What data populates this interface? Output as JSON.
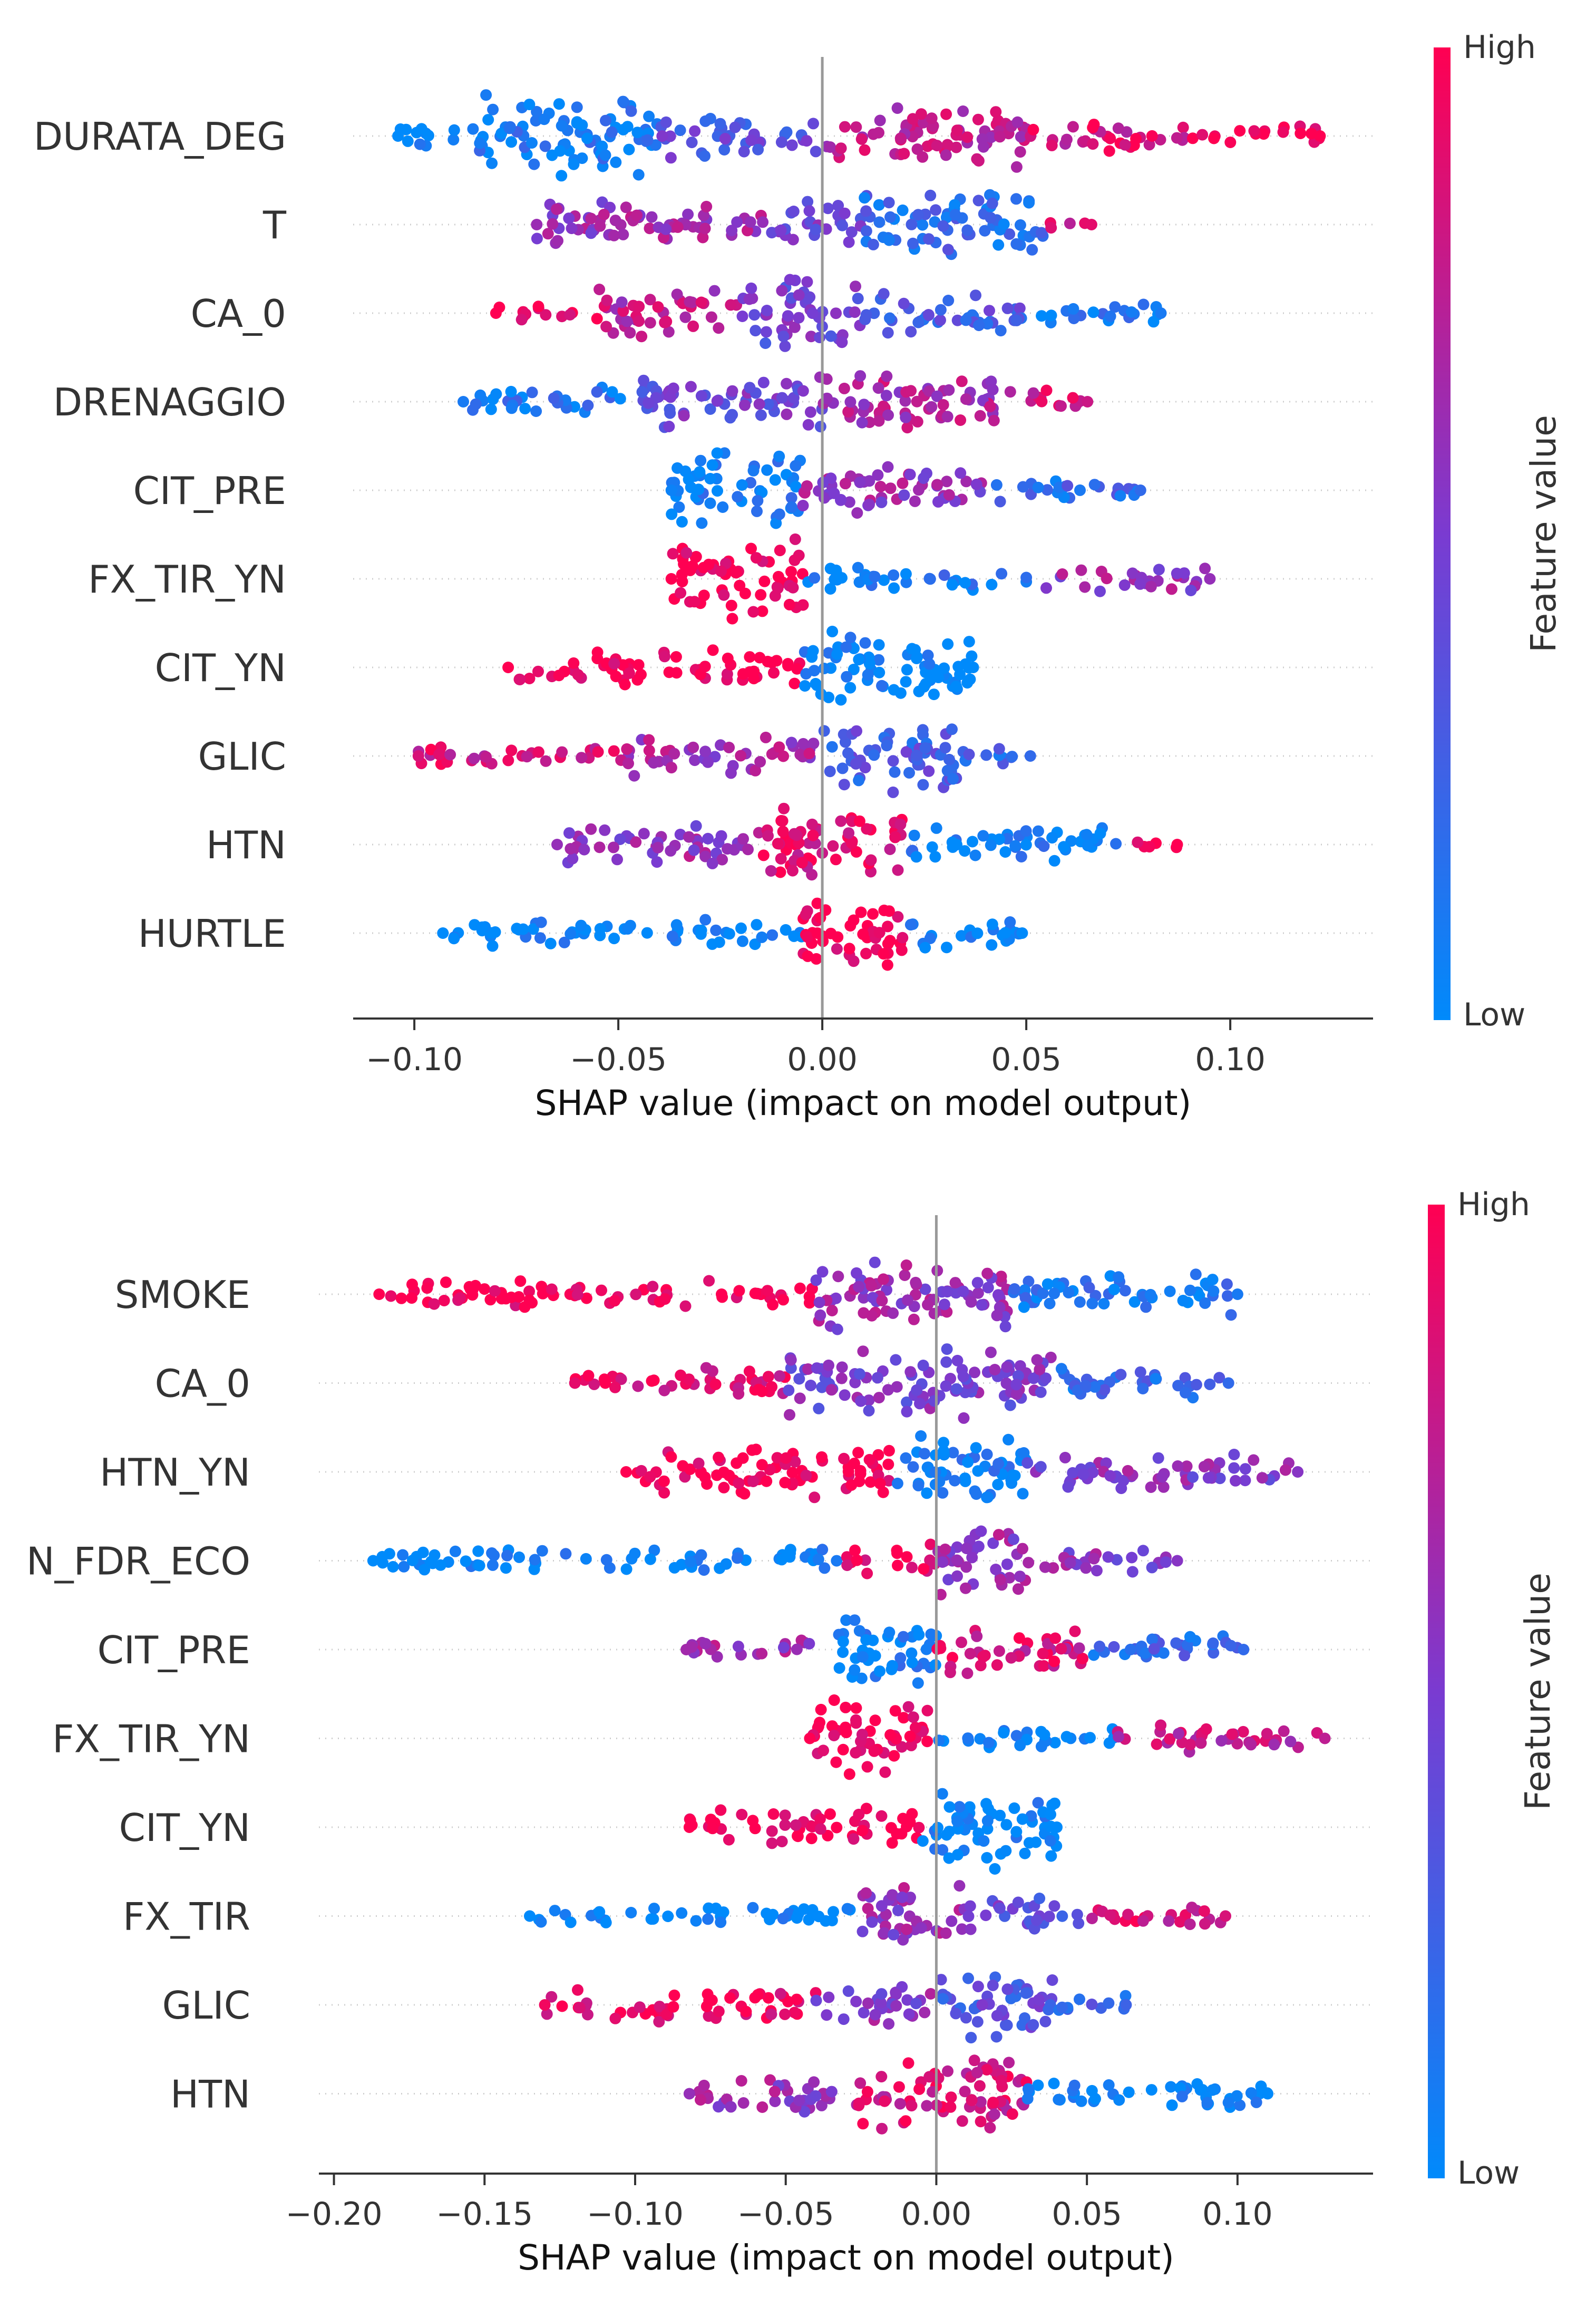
{
  "chart_data": [
    {
      "type": "scatter",
      "subtype": "shap-beeswarm",
      "xlabel": "SHAP value (impact on model output)",
      "xlim": [
        -0.115,
        0.135
      ],
      "xticks": [
        -0.1,
        -0.05,
        0.0,
        0.05,
        0.1
      ],
      "xtick_labels": [
        "−0.10",
        "−0.05",
        "0.00",
        "0.05",
        "0.10"
      ],
      "colorbar": {
        "title": "Feature value",
        "high": "High",
        "low": "Low"
      },
      "features": [
        {
          "name": "DURATA_DEG",
          "min": -0.104,
          "max": 0.122,
          "segments": [
            {
              "from": -0.104,
              "to": -0.085,
              "d": 0.5,
              "c": 0.0
            },
            {
              "from": -0.085,
              "to": -0.04,
              "d": 2.6,
              "c": 0.08
            },
            {
              "from": -0.04,
              "to": 0.0,
              "d": 1.2,
              "c": 0.35
            },
            {
              "from": 0.0,
              "to": 0.05,
              "d": 2.0,
              "c": 0.75
            },
            {
              "from": 0.05,
              "to": 0.09,
              "d": 0.8,
              "c": 0.85
            },
            {
              "from": 0.09,
              "to": 0.122,
              "d": 0.35,
              "c": 1.0
            }
          ]
        },
        {
          "name": "T",
          "min": -0.07,
          "max": 0.066,
          "segments": [
            {
              "from": -0.07,
              "to": -0.015,
              "d": 1.5,
              "c": 0.62
            },
            {
              "from": -0.015,
              "to": 0.01,
              "d": 1.3,
              "c": 0.45
            },
            {
              "from": 0.01,
              "to": 0.055,
              "d": 2.2,
              "c": 0.2
            },
            {
              "from": 0.055,
              "to": 0.066,
              "d": 0.1,
              "c": 0.9
            }
          ]
        },
        {
          "name": "CA_0",
          "min": -0.08,
          "max": 0.083,
          "segments": [
            {
              "from": -0.08,
              "to": -0.055,
              "d": 0.2,
              "c": 1.0
            },
            {
              "from": -0.055,
              "to": -0.02,
              "d": 1.5,
              "c": 0.75
            },
            {
              "from": -0.02,
              "to": 0.01,
              "d": 2.4,
              "c": 0.45
            },
            {
              "from": 0.01,
              "to": 0.05,
              "d": 1.3,
              "c": 0.3
            },
            {
              "from": 0.05,
              "to": 0.083,
              "d": 0.45,
              "c": 0.1
            }
          ]
        },
        {
          "name": "DRENAGGIO",
          "min": -0.088,
          "max": 0.065,
          "segments": [
            {
              "from": -0.088,
              "to": -0.045,
              "d": 0.7,
              "c": 0.1
            },
            {
              "from": -0.045,
              "to": 0.0,
              "d": 1.8,
              "c": 0.45
            },
            {
              "from": 0.0,
              "to": 0.045,
              "d": 2.0,
              "c": 0.7
            },
            {
              "from": 0.045,
              "to": 0.065,
              "d": 0.5,
              "c": 0.8
            }
          ]
        },
        {
          "name": "CIT_PRE",
          "min": -0.037,
          "max": 0.078,
          "segments": [
            {
              "from": -0.037,
              "to": -0.005,
              "d": 2.5,
              "c": 0.05
            },
            {
              "from": -0.005,
              "to": 0.04,
              "d": 1.6,
              "c": 0.6
            },
            {
              "from": 0.04,
              "to": 0.078,
              "d": 0.5,
              "c": 0.2
            }
          ]
        },
        {
          "name": "FX_TIR_YN",
          "min": -0.037,
          "max": 0.095,
          "segments": [
            {
              "from": -0.037,
              "to": -0.004,
              "d": 2.7,
              "c": 1.0
            },
            {
              "from": -0.004,
              "to": 0.05,
              "d": 0.6,
              "c": 0.1
            },
            {
              "from": 0.05,
              "to": 0.095,
              "d": 0.5,
              "c": 0.6
            }
          ]
        },
        {
          "name": "CIT_YN",
          "min": -0.077,
          "max": 0.037,
          "segments": [
            {
              "from": -0.077,
              "to": -0.005,
              "d": 0.9,
              "c": 1.0
            },
            {
              "from": -0.005,
              "to": 0.037,
              "d": 2.6,
              "c": 0.0
            }
          ]
        },
        {
          "name": "GLIC",
          "min": -0.099,
          "max": 0.051,
          "segments": [
            {
              "from": -0.099,
              "to": -0.05,
              "d": 0.5,
              "c": 0.85
            },
            {
              "from": -0.05,
              "to": 0.0,
              "d": 1.1,
              "c": 0.65
            },
            {
              "from": 0.0,
              "to": 0.035,
              "d": 2.4,
              "c": 0.3
            },
            {
              "from": 0.035,
              "to": 0.051,
              "d": 0.5,
              "c": 0.2
            }
          ]
        },
        {
          "name": "HTN",
          "min": -0.065,
          "max": 0.087,
          "segments": [
            {
              "from": -0.065,
              "to": -0.015,
              "d": 1.2,
              "c": 0.6
            },
            {
              "from": -0.015,
              "to": 0.02,
              "d": 2.6,
              "c": 0.9
            },
            {
              "from": 0.02,
              "to": 0.075,
              "d": 0.9,
              "c": 0.05
            },
            {
              "from": 0.075,
              "to": 0.087,
              "d": 0.1,
              "c": 1.0
            }
          ]
        },
        {
          "name": "HURTLE",
          "min": -0.093,
          "max": 0.049,
          "segments": [
            {
              "from": -0.093,
              "to": -0.005,
              "d": 0.6,
              "c": 0.0
            },
            {
              "from": -0.005,
              "to": 0.02,
              "d": 2.8,
              "c": 1.0
            },
            {
              "from": 0.02,
              "to": 0.049,
              "d": 0.8,
              "c": 0.0
            }
          ]
        }
      ]
    },
    {
      "type": "scatter",
      "subtype": "shap-beeswarm",
      "xlabel": "SHAP value (impact on model output)",
      "xlim": [
        -0.205,
        0.145
      ],
      "xticks": [
        -0.2,
        -0.15,
        -0.1,
        -0.05,
        0.0,
        0.05,
        0.1
      ],
      "xtick_labels": [
        "−0.20",
        "−0.15",
        "−0.10",
        "−0.05",
        "0.00",
        "0.05",
        "0.10"
      ],
      "colorbar": {
        "title": "Feature value",
        "high": "High",
        "low": "Low"
      },
      "features": [
        {
          "name": "SMOKE",
          "min": -0.185,
          "max": 0.1,
          "segments": [
            {
              "from": -0.185,
              "to": -0.04,
              "d": 0.6,
              "c": 1.0
            },
            {
              "from": -0.04,
              "to": 0.025,
              "d": 2.4,
              "c": 0.6
            },
            {
              "from": 0.025,
              "to": 0.1,
              "d": 1.2,
              "c": 0.1
            }
          ]
        },
        {
          "name": "CA_0",
          "min": -0.12,
          "max": 0.097,
          "segments": [
            {
              "from": -0.12,
              "to": -0.05,
              "d": 0.8,
              "c": 0.9
            },
            {
              "from": -0.05,
              "to": 0.04,
              "d": 2.2,
              "c": 0.5
            },
            {
              "from": 0.04,
              "to": 0.097,
              "d": 0.8,
              "c": 0.2
            }
          ]
        },
        {
          "name": "HTN_YN",
          "min": -0.103,
          "max": 0.12,
          "segments": [
            {
              "from": -0.103,
              "to": -0.015,
              "d": 1.5,
              "c": 1.0
            },
            {
              "from": -0.015,
              "to": 0.03,
              "d": 2.5,
              "c": 0.05
            },
            {
              "from": 0.03,
              "to": 0.12,
              "d": 0.9,
              "c": 0.55
            }
          ]
        },
        {
          "name": "N_FDR_ECO",
          "min": -0.187,
          "max": 0.08,
          "segments": [
            {
              "from": -0.187,
              "to": -0.03,
              "d": 0.45,
              "c": 0.0
            },
            {
              "from": -0.03,
              "to": 0.0,
              "d": 0.8,
              "c": 0.95
            },
            {
              "from": 0.0,
              "to": 0.03,
              "d": 2.5,
              "c": 0.6
            },
            {
              "from": 0.03,
              "to": 0.08,
              "d": 0.6,
              "c": 0.55
            }
          ]
        },
        {
          "name": "CIT_PRE",
          "min": -0.083,
          "max": 0.102,
          "segments": [
            {
              "from": -0.083,
              "to": -0.035,
              "d": 0.5,
              "c": 0.65
            },
            {
              "from": -0.035,
              "to": 0.0,
              "d": 2.4,
              "c": 0.05
            },
            {
              "from": 0.0,
              "to": 0.05,
              "d": 1.4,
              "c": 0.85
            },
            {
              "from": 0.05,
              "to": 0.102,
              "d": 0.8,
              "c": 0.2
            }
          ]
        },
        {
          "name": "FX_TIR_YN",
          "min": -0.042,
          "max": 0.129,
          "segments": [
            {
              "from": -0.042,
              "to": -0.002,
              "d": 2.5,
              "c": 1.0
            },
            {
              "from": -0.002,
              "to": 0.06,
              "d": 0.45,
              "c": 0.05
            },
            {
              "from": 0.06,
              "to": 0.129,
              "d": 0.7,
              "c": 0.75
            }
          ]
        },
        {
          "name": "CIT_YN",
          "min": -0.082,
          "max": 0.04,
          "segments": [
            {
              "from": -0.082,
              "to": -0.005,
              "d": 1.0,
              "c": 1.0
            },
            {
              "from": -0.005,
              "to": 0.04,
              "d": 2.7,
              "c": 0.0
            }
          ]
        },
        {
          "name": "FX_TIR",
          "min": -0.135,
          "max": 0.096,
          "segments": [
            {
              "from": -0.135,
              "to": -0.025,
              "d": 0.35,
              "c": 0.0
            },
            {
              "from": -0.025,
              "to": 0.01,
              "d": 2.2,
              "c": 0.6
            },
            {
              "from": 0.01,
              "to": 0.05,
              "d": 0.9,
              "c": 0.4
            },
            {
              "from": 0.05,
              "to": 0.096,
              "d": 0.6,
              "c": 0.85
            }
          ]
        },
        {
          "name": "GLIC",
          "min": -0.13,
          "max": 0.063,
          "segments": [
            {
              "from": -0.13,
              "to": -0.04,
              "d": 0.8,
              "c": 0.95
            },
            {
              "from": -0.04,
              "to": 0.0,
              "d": 1.4,
              "c": 0.55
            },
            {
              "from": 0.0,
              "to": 0.04,
              "d": 2.4,
              "c": 0.35
            },
            {
              "from": 0.04,
              "to": 0.063,
              "d": 0.5,
              "c": 0.25
            }
          ]
        },
        {
          "name": "HTN",
          "min": -0.082,
          "max": 0.11,
          "segments": [
            {
              "from": -0.082,
              "to": -0.03,
              "d": 1.0,
              "c": 0.6
            },
            {
              "from": -0.03,
              "to": 0.03,
              "d": 2.5,
              "c": 0.85
            },
            {
              "from": 0.03,
              "to": 0.11,
              "d": 0.8,
              "c": 0.0
            }
          ]
        }
      ]
    }
  ]
}
